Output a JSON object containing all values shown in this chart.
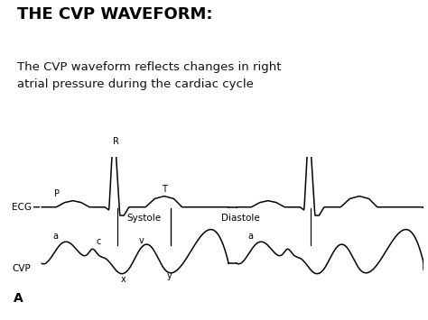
{
  "title": "THE CVP WAVEFORM:",
  "subtitle": "The CVP waveform reflects changes in right\natrial pressure during the cardiac cycle",
  "box_bg": "#f5f0d0",
  "white_bg": "#ffffff",
  "ecg_label": "ECG",
  "cvp_label": "CVP",
  "bottom_label": "A",
  "systole_label": "Systole",
  "diastole_label": "Diastole",
  "title_fontsize": 13,
  "subtitle_fontsize": 9.5,
  "label_fontsize": 7.5,
  "annot_fontsize": 7
}
